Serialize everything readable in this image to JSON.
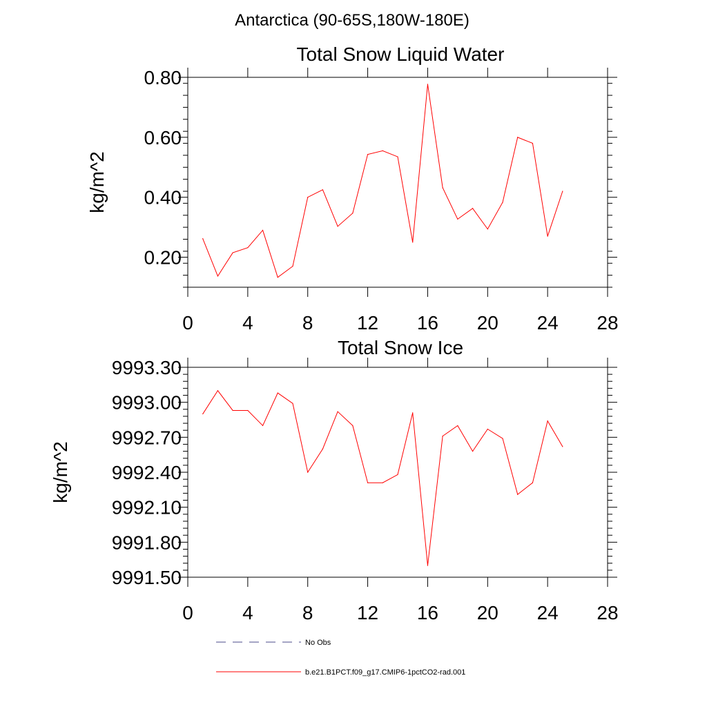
{
  "page": {
    "title": "Antarctica (90-65S,180W-180E)"
  },
  "chart_data": [
    {
      "type": "line",
      "title": "Total Snow Liquid Water",
      "xlabel": "",
      "ylabel": "kg/m^2",
      "xlim": [
        0,
        28
      ],
      "ylim": [
        0.1,
        0.8
      ],
      "xticks": [
        0,
        4,
        8,
        12,
        16,
        20,
        24,
        28
      ],
      "yticks": [
        0.2,
        0.4,
        0.6,
        0.8
      ],
      "ytick_labels": [
        "0.20",
        "0.40",
        "0.60",
        "0.80"
      ],
      "x": [
        1,
        2,
        3,
        4,
        5,
        6,
        7,
        8,
        9,
        10,
        11,
        12,
        13,
        14,
        15,
        16,
        17,
        18,
        19,
        20,
        21,
        22,
        23,
        24,
        25
      ],
      "series": [
        {
          "name": "b.e21.B1PCT.f09_g17.CMIP6-1pctCO2-rad.001",
          "color": "#ff0000",
          "values": [
            0.262,
            0.137,
            0.215,
            0.232,
            0.29,
            0.133,
            0.17,
            0.4,
            0.425,
            0.303,
            0.347,
            0.543,
            0.555,
            0.535,
            0.25,
            0.777,
            0.432,
            0.327,
            0.363,
            0.294,
            0.383,
            0.6,
            0.58,
            0.27,
            0.42
          ]
        }
      ],
      "grid": false
    },
    {
      "type": "line",
      "title": "Total Snow Ice",
      "xlabel": "",
      "ylabel": "kg/m^2",
      "xlim": [
        0,
        28
      ],
      "ylim": [
        9991.5,
        9993.3
      ],
      "xticks": [
        0,
        4,
        8,
        12,
        16,
        20,
        24,
        28
      ],
      "yticks": [
        9991.5,
        9991.8,
        9992.1,
        9992.4,
        9992.7,
        9993.0,
        9993.3
      ],
      "ytick_labels": [
        "9991.50",
        "9991.80",
        "9992.10",
        "9992.40",
        "9992.70",
        "9993.00",
        "9993.30"
      ],
      "x": [
        1,
        2,
        3,
        4,
        5,
        6,
        7,
        8,
        9,
        10,
        11,
        12,
        13,
        14,
        15,
        16,
        17,
        18,
        19,
        20,
        21,
        22,
        23,
        24,
        25
      ],
      "series": [
        {
          "name": "b.e21.B1PCT.f09_g17.CMIP6-1pctCO2-rad.001",
          "color": "#ff0000",
          "values": [
            9992.9,
            9993.1,
            9992.93,
            9992.93,
            9992.8,
            9993.08,
            9992.99,
            9992.4,
            9992.6,
            9992.92,
            9992.8,
            9992.31,
            9992.31,
            9992.38,
            9992.91,
            9991.6,
            9992.71,
            9992.8,
            9992.58,
            9992.77,
            9992.69,
            9992.21,
            9992.31,
            9992.84,
            9992.62
          ]
        }
      ],
      "grid": false
    }
  ],
  "legend": {
    "placement": "bottom",
    "items": [
      {
        "label": "No Obs",
        "color": "#4a4a8a",
        "style": "dashed"
      },
      {
        "label": "b.e21.B1PCT.f09_g17.CMIP6-1pctCO2-rad.001",
        "color": "#ff0000",
        "style": "solid"
      }
    ]
  }
}
